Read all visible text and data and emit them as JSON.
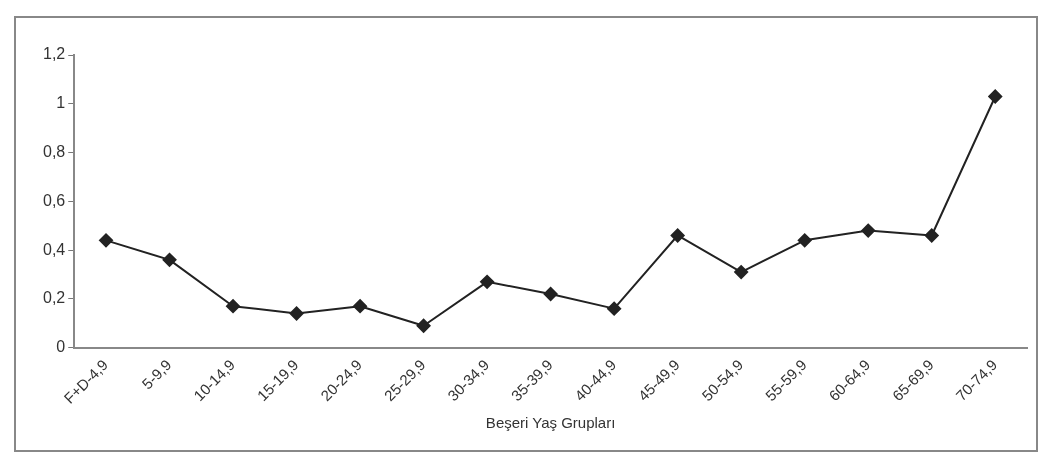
{
  "chart_data": {
    "type": "line",
    "xlabel": "Beşeri Yaş Grupları",
    "categories": [
      "F+D-4,9",
      "5-9,9",
      "10-14,9",
      "15-19,9",
      "20-24,9",
      "25-29,9",
      "30-34,9",
      "35-39,9",
      "40-44,9",
      "45-49,9",
      "50-54,9",
      "55-59,9",
      "60-64,9",
      "65-69,9",
      "70-74,9"
    ],
    "values": [
      0.44,
      0.36,
      0.17,
      0.14,
      0.17,
      0.09,
      0.27,
      0.22,
      0.16,
      0.46,
      0.31,
      0.44,
      0.48,
      0.46,
      1.03
    ],
    "color": "#222222",
    "ylim": [
      0,
      1.2
    ],
    "yticks": [
      0,
      {
        "value": 0.2,
        "label": "0,2"
      },
      {
        "value": 0.4,
        "label": "0,4"
      },
      {
        "value": 0.6,
        "label": "0,6"
      },
      {
        "value": 0.8,
        "label": "0,8"
      },
      1,
      {
        "value": 1.2,
        "label": "1,2"
      }
    ],
    "grid": false,
    "legend": false,
    "marker": "diamond",
    "line_style": "solid"
  }
}
